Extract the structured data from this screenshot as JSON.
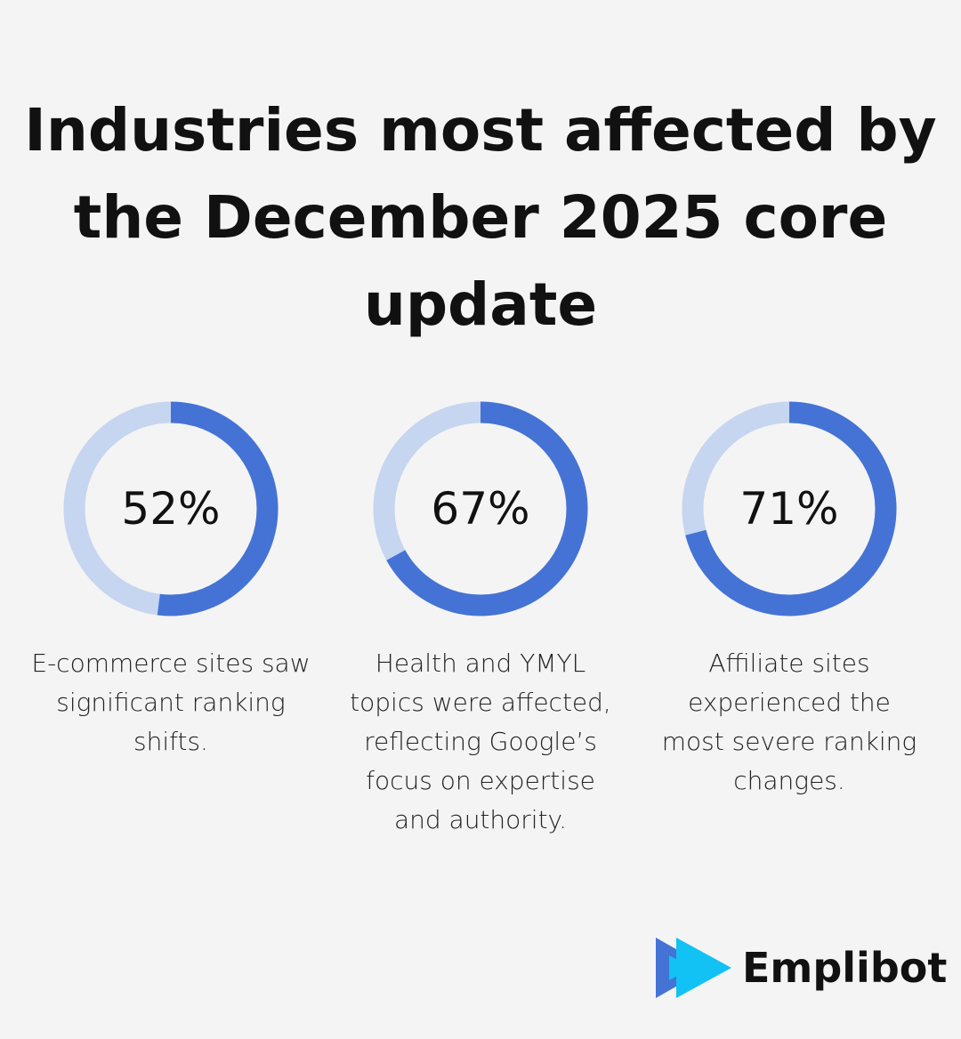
{
  "chart_data": {
    "type": "donut",
    "title": "Industries most affected by the December 2025 core update",
    "items": [
      {
        "value": 52,
        "label": "52%",
        "description": "E-commerce sites saw significant ranking shifts."
      },
      {
        "value": 67,
        "label": "67%",
        "description": "Health and YMYL topics were affected, reflecting Google’s focus on expertise and authority."
      },
      {
        "value": 71,
        "label": "71%",
        "description": "Affiliate sites experienced the most severe ranking changes."
      }
    ],
    "max": 100,
    "colors": {
      "filled": "#4573d5",
      "track": "#c6d5f0"
    }
  },
  "brand": {
    "name": "Emplibot",
    "colors": [
      "#4573d5",
      "#12c2f4"
    ]
  }
}
